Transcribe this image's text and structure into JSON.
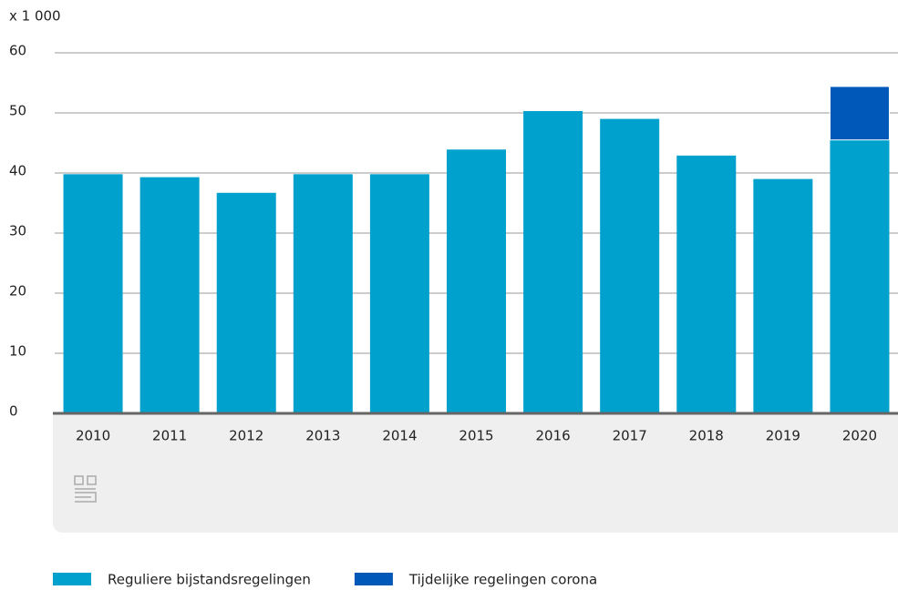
{
  "chart_data": {
    "type": "stacked_bar",
    "ylabel": "x 1 000",
    "categories": [
      "2010",
      "2011",
      "2012",
      "2013",
      "2014",
      "2015",
      "2016",
      "2017",
      "2018",
      "2019",
      "2020"
    ],
    "series": [
      {
        "name": "Reguliere bijstandsregelingen",
        "color": "#00a1cd",
        "values": [
          39.8,
          39.3,
          36.7,
          39.8,
          39.8,
          43.9,
          50.3,
          49.0,
          42.9,
          39.0,
          45.5
        ]
      },
      {
        "name": "Tijdelijke regelingen corona",
        "color": "#0058b8",
        "values": [
          null,
          null,
          null,
          null,
          null,
          null,
          null,
          null,
          null,
          null,
          8.9
        ]
      }
    ],
    "ylim": [
      0,
      60
    ],
    "yticks": [
      0,
      10,
      20,
      30,
      40,
      50,
      60
    ],
    "grid": true,
    "legend": "bottom"
  }
}
